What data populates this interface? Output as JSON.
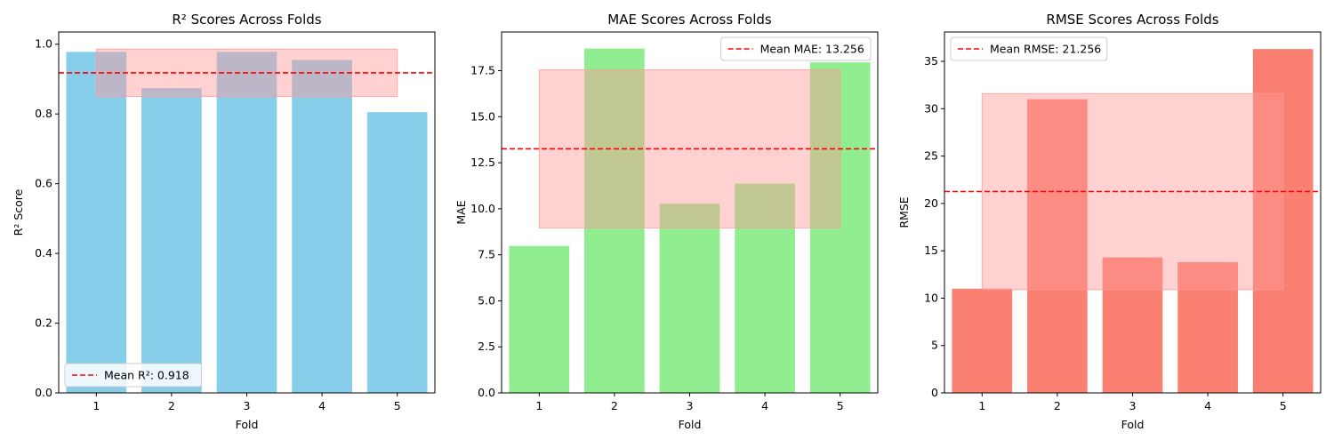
{
  "chart_data": [
    {
      "type": "bar",
      "title": "R² Scores Across Folds",
      "xlabel": "Fold",
      "ylabel": "R² Score",
      "categories": [
        "1",
        "2",
        "3",
        "4",
        "5"
      ],
      "values": [
        0.978,
        0.874,
        0.978,
        0.955,
        0.805
      ],
      "ylim": [
        0,
        1.035
      ],
      "yticks": [
        0.0,
        0.2,
        0.4,
        0.6,
        0.8,
        1.0
      ],
      "ytick_labels": [
        "0.0",
        "0.2",
        "0.4",
        "0.6",
        "0.8",
        "1.0"
      ],
      "bar_color": "#87ceeb",
      "mean": 0.918,
      "mean_label": "Mean R²: 0.918",
      "mean_line_color": "#ff0000",
      "band": {
        "x_from": "1",
        "x_to": "5",
        "y_from": 0.85,
        "y_to": 0.986,
        "color": "#ff9999",
        "opacity": 0.5
      },
      "legend_loc": "lower-left",
      "grid": false
    },
    {
      "type": "bar",
      "title": "MAE Scores Across Folds",
      "xlabel": "Fold",
      "ylabel": "MAE",
      "categories": [
        "1",
        "2",
        "3",
        "4",
        "5"
      ],
      "values": [
        7.98,
        18.7,
        10.27,
        11.37,
        17.95
      ],
      "ylim": [
        0,
        19.6
      ],
      "yticks": [
        0.0,
        2.5,
        5.0,
        7.5,
        10.0,
        12.5,
        15.0,
        17.5
      ],
      "ytick_labels": [
        "0.0",
        "2.5",
        "5.0",
        "7.5",
        "10.0",
        "12.5",
        "15.0",
        "17.5"
      ],
      "bar_color": "#90ee90",
      "mean": 13.256,
      "mean_label": "Mean MAE: 13.256",
      "mean_line_color": "#ff0000",
      "band": {
        "x_from": "1",
        "x_to": "5",
        "y_from": 8.96,
        "y_to": 17.55,
        "color": "#ff9999",
        "opacity": 0.5
      },
      "legend_loc": "upper-right",
      "grid": false
    },
    {
      "type": "bar",
      "title": "RMSE Scores Across Folds",
      "xlabel": "Fold",
      "ylabel": "RMSE",
      "categories": [
        "1",
        "2",
        "3",
        "4",
        "5"
      ],
      "values": [
        11.0,
        31.0,
        14.3,
        13.8,
        36.3
      ],
      "ylim": [
        0,
        38.1
      ],
      "yticks": [
        0,
        5,
        10,
        15,
        20,
        25,
        30,
        35
      ],
      "ytick_labels": [
        "0",
        "5",
        "10",
        "15",
        "20",
        "25",
        "30",
        "35"
      ],
      "bar_color": "#fa8072",
      "mean": 21.256,
      "mean_label": "Mean RMSE: 21.256",
      "mean_line_color": "#ff0000",
      "band": {
        "x_from": "1",
        "x_to": "5",
        "y_from": 10.9,
        "y_to": 31.6,
        "color": "#ff9999",
        "opacity": 0.5
      },
      "legend_loc": "upper-left",
      "grid": false
    }
  ]
}
